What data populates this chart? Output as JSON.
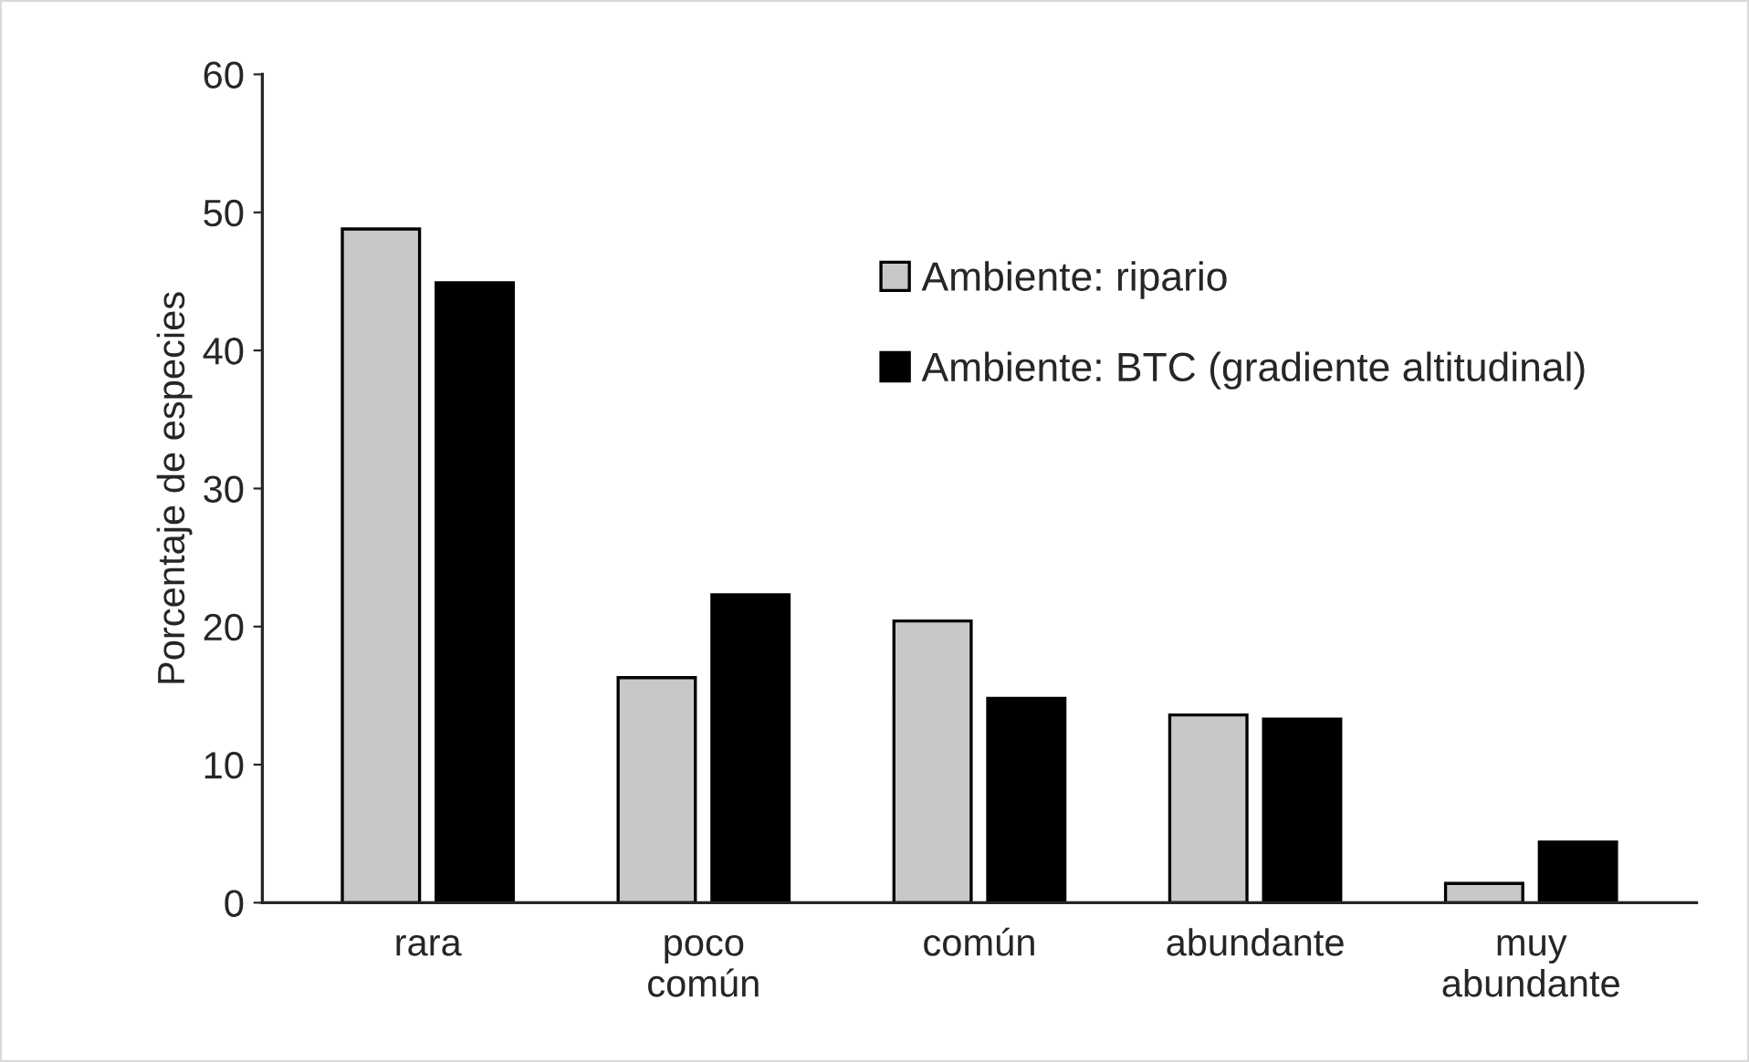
{
  "chart_data": {
    "type": "bar",
    "ylabel": "Porcentaje de especies",
    "categories": [
      "rara",
      "poco\ncomún",
      "común",
      "abundante",
      "muy\nabundante"
    ],
    "series": [
      {
        "name": "Ambiente: ripario",
        "color": "#c8c8c8",
        "values": [
          48.8,
          16.3,
          20.4,
          13.6,
          1.4
        ]
      },
      {
        "name": "Ambiente: BTC (gradiente altitudinal)",
        "color": "#000000",
        "values": [
          44.9,
          22.3,
          14.8,
          13.3,
          4.4
        ]
      }
    ],
    "ylim": [
      0,
      60
    ],
    "yticks": [
      0,
      10,
      20,
      30,
      40,
      50,
      60
    ],
    "grid": false,
    "legend": "top right"
  }
}
